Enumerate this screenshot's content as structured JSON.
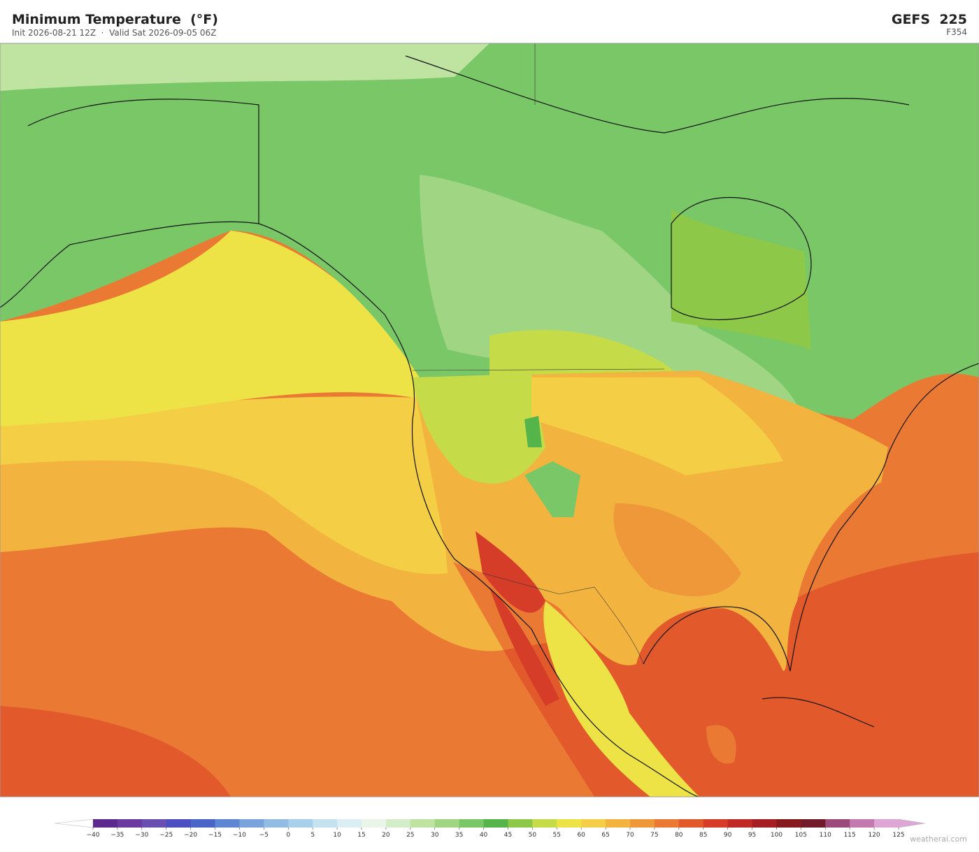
{
  "header": {
    "title": "Minimum Temperature  (°F)",
    "subtitle": "Init 2026-08-21 12Z  ·  Valid Sat 2026-09-05 06Z",
    "model": "GEFS  225",
    "forecast_hour": "F354"
  },
  "colorbar": {
    "ticks": [
      {
        "value": -40,
        "label": "−40"
      },
      {
        "value": -35,
        "label": "−35"
      },
      {
        "value": -30,
        "label": "−30"
      },
      {
        "value": -25,
        "label": "−25"
      },
      {
        "value": -20,
        "label": "−20"
      },
      {
        "value": -15,
        "label": "−15"
      },
      {
        "value": -10,
        "label": "−10"
      },
      {
        "value": -5,
        "label": "−5"
      },
      0,
      5,
      10,
      15,
      20,
      25,
      30,
      35,
      40,
      45,
      50,
      55,
      60,
      65,
      70,
      75,
      80,
      85,
      90,
      95,
      100,
      105,
      110,
      115,
      120,
      125
    ],
    "colors": [
      "#5b2a8c",
      "#6b3a9e",
      "#6a4fb2",
      "#4c4fc0",
      "#4a64c8",
      "#5f86d2",
      "#7aa2db",
      "#93bce4",
      "#a9d0ea",
      "#c4e2f0",
      "#dbeef3",
      "#e8f5e8",
      "#d3edc9",
      "#bfe3a0",
      "#a0d683",
      "#79c766",
      "#56b54a",
      "#8dc848",
      "#c5dc48",
      "#eee346",
      "#f4cf45",
      "#f2b43f",
      "#ef983a",
      "#ea7a33",
      "#e25a2b",
      "#d63d28",
      "#c02a25",
      "#a51f22",
      "#861a1e",
      "#701a2a",
      "#9b4a7a",
      "#c47aae",
      "#dda6d4"
    ],
    "under_color": "#ffffff",
    "over_color": "#dda6d4"
  },
  "watermark": "weatherai.com"
}
